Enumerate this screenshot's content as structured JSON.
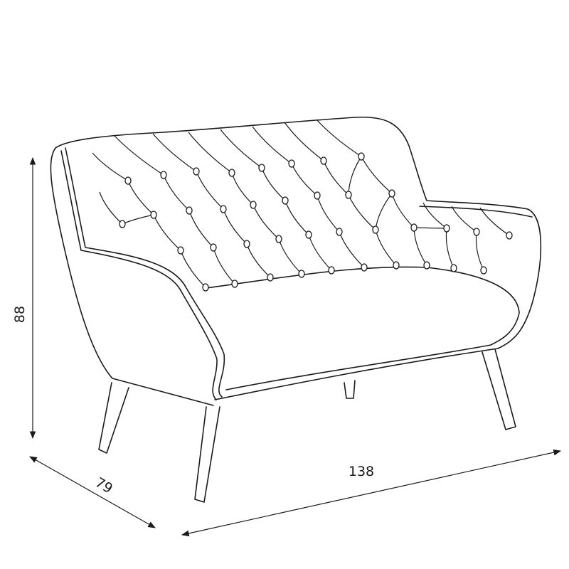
{
  "dimensions": {
    "height": "88",
    "depth": "79",
    "width": "138"
  },
  "colors": {
    "line": "#1a1a1a",
    "background": "#ffffff"
  }
}
